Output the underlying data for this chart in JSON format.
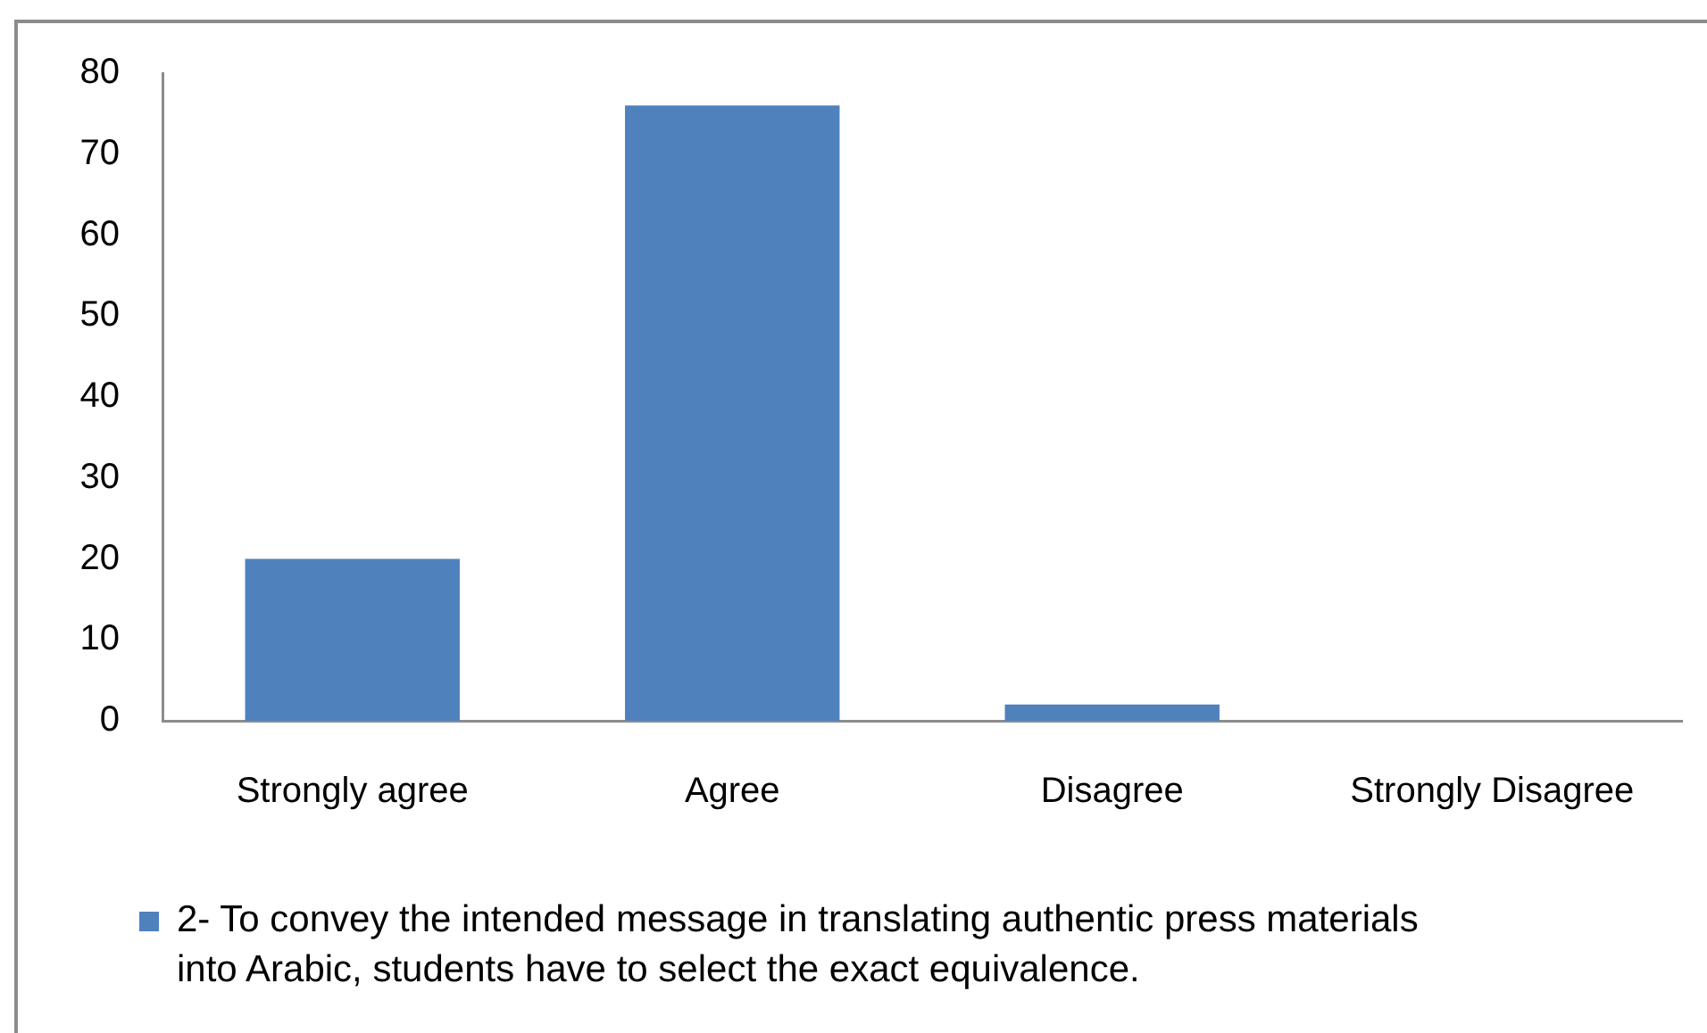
{
  "chart_data": {
    "type": "bar",
    "categories": [
      "Strongly agree",
      "Agree",
      "Disagree",
      "Strongly Disagree"
    ],
    "series": [
      {
        "name": "2- To convey the intended message in translating authentic press materials into Arabic, students have to select the exact equivalence.",
        "color": "#4f81bd",
        "values": [
          20,
          76,
          2,
          0
        ]
      }
    ],
    "ylim": [
      0,
      80
    ],
    "yticks": [
      0,
      10,
      20,
      30,
      40,
      50,
      60,
      70,
      80
    ],
    "legend": "bottom"
  }
}
